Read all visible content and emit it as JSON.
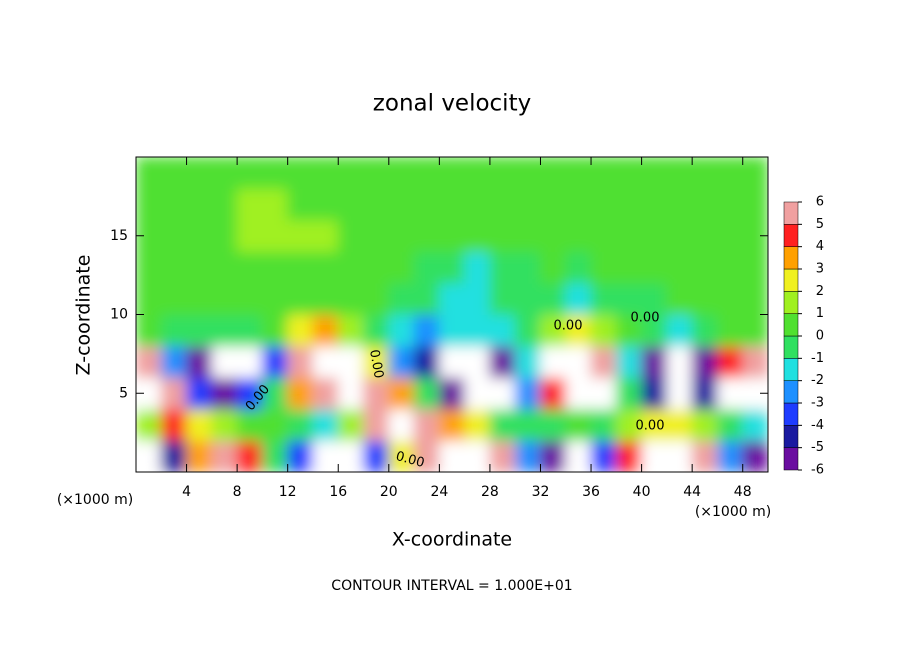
{
  "chart_data": {
    "type": "heatmap",
    "title": "zonal velocity",
    "x_label": "X-coordinate",
    "y_label": "Z-coordinate",
    "x_unit": "(×1000 m)",
    "y_unit": "(×1000 m)",
    "footer": "CONTOUR INTERVAL = 1.000E+01",
    "contour_labels": [
      "0.00",
      "0.00",
      "0.00",
      "0.00",
      "0.00",
      "0.00"
    ],
    "xlim": [
      0,
      50
    ],
    "ylim": [
      0,
      20
    ],
    "xticks": [
      4,
      8,
      12,
      16,
      20,
      24,
      28,
      32,
      36,
      40,
      44,
      48
    ],
    "yticks": [
      5,
      10,
      15
    ],
    "x": [
      1,
      3,
      5,
      7,
      9,
      11,
      13,
      15,
      17,
      19,
      21,
      23,
      25,
      27,
      29,
      31,
      33,
      35,
      37,
      39,
      41,
      43,
      45,
      47,
      49
    ],
    "y": [
      1,
      3,
      5,
      7,
      9,
      11,
      13,
      15,
      17,
      19
    ],
    "z": [
      [
        -7,
        -5,
        3,
        6,
        4,
        -1,
        -4,
        -7,
        -8,
        -4,
        2,
        6,
        8,
        8,
        6,
        -3,
        -6,
        -8,
        -4,
        4,
        8,
        8,
        5,
        -3,
        -6
      ],
      [
        1,
        4,
        2,
        1,
        0,
        0,
        -1,
        -2,
        1,
        5,
        7,
        5,
        3,
        2,
        -1,
        -1,
        -1,
        0,
        -1,
        1,
        2,
        2,
        1,
        -1,
        -2
      ],
      [
        8,
        5,
        -4,
        -6,
        -4,
        -1,
        3,
        6,
        8,
        6,
        3,
        -1,
        -6,
        -8,
        -7,
        -3,
        4,
        7,
        8,
        -1,
        -5,
        -8,
        -5,
        7,
        8
      ],
      [
        5,
        -3,
        -6,
        -8,
        -8,
        -4,
        6,
        8,
        7,
        2,
        -3,
        -5,
        -8,
        -8,
        -6,
        -2,
        7,
        8,
        5,
        -2,
        -6,
        -8,
        -6,
        4,
        6
      ],
      [
        0.5,
        -0.5,
        -1,
        -1,
        -0.5,
        0.5,
        2,
        3,
        1,
        -1,
        -2,
        -2.5,
        -2,
        -2,
        -1.5,
        -0.5,
        1,
        2,
        1,
        0,
        -1,
        -1.5,
        -1,
        0,
        0.5
      ],
      [
        0.5,
        0.5,
        0,
        0,
        0.3,
        0.5,
        0.5,
        0.5,
        0.3,
        0,
        -0.5,
        -1,
        -1.5,
        -1.5,
        -1,
        -0.5,
        -1,
        -2,
        -1,
        -0.5,
        -0.5,
        0,
        0,
        0,
        0
      ],
      [
        0,
        0.3,
        0.5,
        0.6,
        0.6,
        0.5,
        0.5,
        0.5,
        0.3,
        0,
        0,
        -0.5,
        -1,
        -1.2,
        -0.8,
        -0.3,
        0,
        -0.5,
        0,
        0.3,
        0.5,
        0.8,
        0.8,
        0.5,
        0.3
      ],
      [
        0.3,
        0.5,
        0.6,
        0.8,
        1,
        1.2,
        1.2,
        1,
        0.6,
        0.3,
        0,
        0,
        0,
        0,
        0,
        0,
        0,
        0,
        0.3,
        0.5,
        0.6,
        0.8,
        0.8,
        0.6,
        0.5
      ],
      [
        0.5,
        0.6,
        0.6,
        0.8,
        1,
        1,
        0.8,
        0.6,
        0.5,
        0.3,
        0.2,
        0.2,
        0.2,
        0.3,
        0.3,
        0.3,
        0.3,
        0.3,
        0.3,
        0.3,
        0.3,
        0.3,
        0.3,
        0.3,
        0.3
      ],
      [
        0.3,
        0.3,
        0.3,
        0.3,
        0.3,
        0.3,
        0.3,
        0.3,
        0.3,
        0.3,
        0.3,
        0.3,
        0.3,
        0.3,
        0.3,
        0.3,
        0.3,
        0.3,
        0.3,
        0.3,
        0.3,
        0.3,
        0.3,
        0.3,
        0.3
      ]
    ],
    "colorbar": {
      "ticks": [
        -6,
        -5,
        -4,
        -3,
        -2,
        -1,
        0,
        1,
        2,
        3,
        4,
        5,
        6
      ],
      "colors": [
        "#6a0da0",
        "#1a1aa0",
        "#1e3cff",
        "#1e90ff",
        "#20e0e0",
        "#30e060",
        "#50e030",
        "#a0f020",
        "#f0f020",
        "#ffa000",
        "#ff2020",
        "#f0a0a0"
      ],
      "out_of_range_color": "#ffffff"
    }
  }
}
